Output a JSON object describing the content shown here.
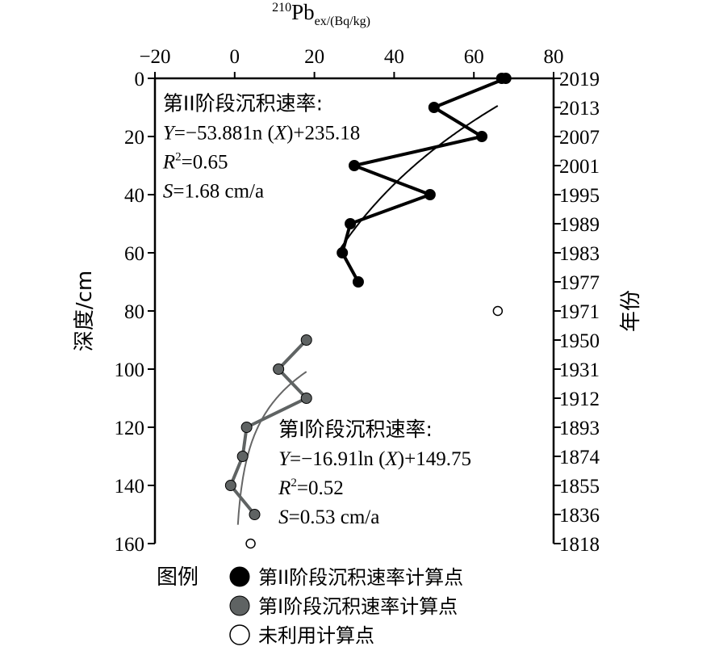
{
  "chart_data": {
    "type": "scatter",
    "x_axis": {
      "label_main": "210Pb",
      "label_sup": "210",
      "label_base": "Pb",
      "label_sub": "ex/(Bq/kg)",
      "position": "top",
      "range": [
        -20,
        80
      ],
      "ticks": [
        -20,
        0,
        20,
        40,
        60,
        80
      ],
      "tick_labels": [
        "−20",
        "0",
        "20",
        "40",
        "60",
        "80"
      ]
    },
    "y_axis_left": {
      "label": "深度/cm",
      "range": [
        0,
        160
      ],
      "reversed": true,
      "ticks": [
        0,
        20,
        40,
        60,
        80,
        100,
        120,
        140,
        160
      ],
      "tick_labels": [
        "0",
        "20",
        "40",
        "60",
        "80",
        "100",
        "120",
        "140",
        "160"
      ]
    },
    "y_axis_right": {
      "label": "年份",
      "ticks_depth": [
        0,
        10,
        20,
        30,
        40,
        50,
        60,
        70,
        80,
        90,
        100,
        110,
        120,
        130,
        140,
        150,
        160
      ],
      "tick_labels": [
        "2019",
        "2013",
        "2007",
        "2001",
        "1995",
        "1989",
        "1983",
        "1977",
        "1971",
        "1950",
        "1931",
        "1912",
        "1893",
        "1874",
        "1855",
        "1836",
        "1818"
      ]
    },
    "series": [
      {
        "name": "第II阶段沉积速率计算点",
        "marker": "filled-black",
        "color": "#000000",
        "connected": true,
        "points": [
          {
            "x": 67,
            "y": 0
          },
          {
            "x": 68,
            "y": 0
          },
          {
            "x": 50,
            "y": 10
          },
          {
            "x": 62,
            "y": 20
          },
          {
            "x": 30,
            "y": 30
          },
          {
            "x": 49,
            "y": 40
          },
          {
            "x": 29,
            "y": 50
          },
          {
            "x": 27,
            "y": 60
          },
          {
            "x": 31,
            "y": 70
          }
        ]
      },
      {
        "name": "第I阶段沉积速率计算点",
        "marker": "filled-gray",
        "color": "#5f6363",
        "connected": true,
        "points": [
          {
            "x": 18,
            "y": 90
          },
          {
            "x": 11,
            "y": 100
          },
          {
            "x": 18,
            "y": 110
          },
          {
            "x": 3,
            "y": 120
          },
          {
            "x": 2,
            "y": 130
          },
          {
            "x": -1,
            "y": 140
          },
          {
            "x": 5,
            "y": 150
          }
        ]
      },
      {
        "name": "未利用计算点",
        "marker": "open-circle",
        "color": "#000000",
        "connected": false,
        "points": [
          {
            "x": 66,
            "y": 80
          },
          {
            "x": 4,
            "y": 160
          }
        ]
      }
    ],
    "fits": [
      {
        "a": -53.881,
        "b": 235.18,
        "x_range": [
          26.5,
          66
        ],
        "color": "#000000"
      },
      {
        "a": -16.91,
        "b": 149.75,
        "x_range": [
          0.8,
          18
        ],
        "color": "#666666"
      }
    ],
    "annotations": [
      {
        "anchor_x": -18,
        "anchor_y": 11,
        "lines": [
          {
            "text": "第II阶段沉积速率:"
          },
          {
            "italic": "Y",
            "text": "=−53.881n (",
            "italic2": "X",
            "text2": ")+235.18"
          },
          {
            "italic": "R",
            "sup": "2",
            "text": "=0.65"
          },
          {
            "italic": "S",
            "text": "=1.68 cm/a"
          }
        ]
      },
      {
        "anchor_x": 11,
        "anchor_y": 123,
        "lines": [
          {
            "text": "第I阶段沉积速率:"
          },
          {
            "italic": "Y",
            "text": "=−16.91ln (",
            "italic2": "X",
            "text2": ")+149.75"
          },
          {
            "italic": "R",
            "sup": "2",
            "text": "=0.52"
          },
          {
            "italic": "S",
            "text": "=0.53 cm/a"
          }
        ]
      }
    ],
    "legend": {
      "title": "图例",
      "placement": "bottom",
      "entries": [
        {
          "label": "第II阶段沉积速率计算点",
          "marker": "filled-black"
        },
        {
          "label": "第I阶段沉积速率计算点",
          "marker": "filled-gray"
        },
        {
          "label": "未利用计算点",
          "marker": "open-circle"
        }
      ]
    },
    "grid": false
  }
}
